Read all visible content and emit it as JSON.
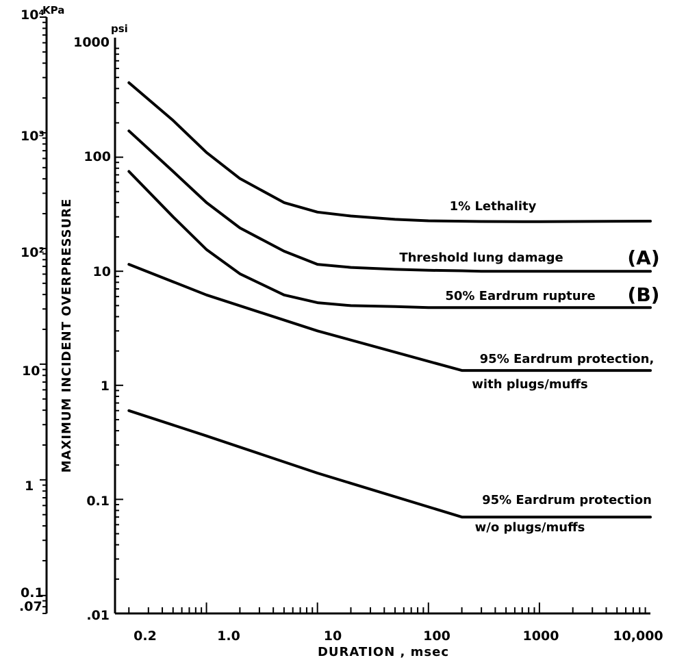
{
  "chart_data": {
    "type": "line",
    "xlabel": "DURATION , msec",
    "ylabel": "MAXIMUM INCIDENT OVERPRESSURE",
    "x_scale": "log",
    "y_scale": "log",
    "xlim": [
      0.15,
      10000
    ],
    "ylim": [
      0.01,
      1000
    ],
    "grid": false,
    "x_ticks": [
      "0.2",
      "1.0",
      "10",
      "100",
      "1000",
      "10,000"
    ],
    "y_unit_psi": "psi",
    "y_ticks_psi": [
      "1000",
      "100",
      "10",
      "1",
      "0.1",
      ".01"
    ],
    "y_unit_kpa": "KPa",
    "y_ticks_kpa": [
      "10⁴",
      "10³",
      "10²",
      "10",
      "1",
      "0.1",
      ".07"
    ],
    "series": [
      {
        "name": "1% Lethality",
        "x": [
          0.2,
          0.5,
          1,
          2,
          5,
          10,
          20,
          50,
          100,
          300,
          1000,
          10000
        ],
        "y": [
          450,
          210,
          110,
          65,
          40,
          33,
          30.5,
          28.5,
          27.7,
          27.3,
          27.2,
          27.5
        ]
      },
      {
        "name": "Threshold lung damage",
        "x": [
          0.2,
          0.5,
          1,
          2,
          5,
          10,
          20,
          50,
          100,
          200,
          300,
          1000,
          10000
        ],
        "y": [
          170,
          75,
          40,
          24,
          15,
          11.5,
          10.8,
          10.4,
          10.2,
          10.1,
          10,
          10,
          10
        ]
      },
      {
        "name": "50% Eardrum rupture",
        "x": [
          0.2,
          0.5,
          1,
          2,
          5,
          10,
          20,
          50,
          100,
          200,
          1000,
          10000
        ],
        "y": [
          75,
          30,
          15.5,
          9.5,
          6.2,
          5.3,
          5,
          4.9,
          4.8,
          4.8,
          4.8,
          4.8
        ]
      },
      {
        "name": "95% Eardrum protection, with plugs/muffs",
        "x": [
          0.2,
          1,
          10,
          200,
          10000
        ],
        "y": [
          11.5,
          6.2,
          3,
          1.35,
          1.35
        ]
      },
      {
        "name": "95% Eardrum protection w/o plugs/muffs",
        "x": [
          0.2,
          1,
          10,
          200,
          10000
        ],
        "y": [
          0.6,
          0.36,
          0.17,
          0.07,
          0.07
        ]
      }
    ],
    "annotations": {
      "lethality": "1% Lethality",
      "lung": "Threshold lung damage",
      "lung_letter": "(A)",
      "eardrum": "50% Eardrum rupture",
      "eardrum_letter": "(B)",
      "plugs_line1": "95% Eardrum protection,",
      "plugs_line2": "with plugs/muffs",
      "noplugs_line1": "95% Eardrum protection",
      "noplugs_line2": "w/o plugs/muffs"
    }
  }
}
